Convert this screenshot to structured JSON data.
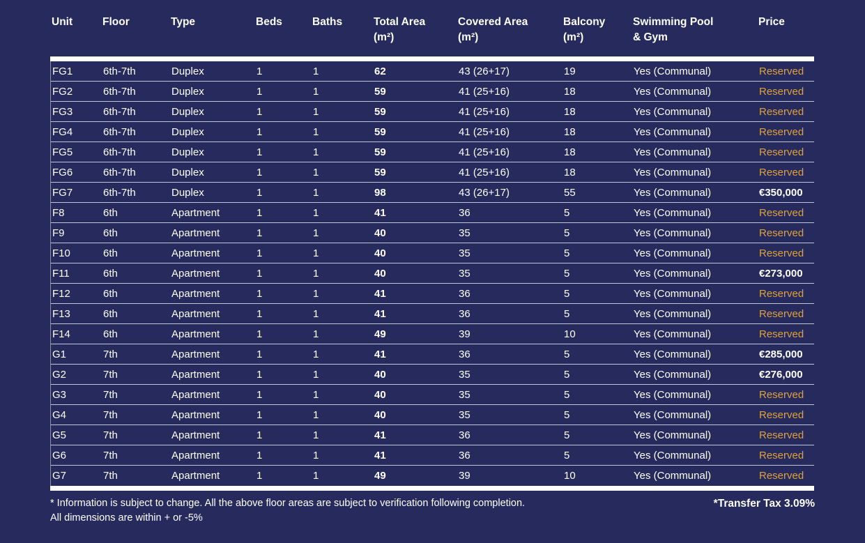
{
  "colors": {
    "background": "#262a5c",
    "reserved_text": "#dfa237",
    "body_text": "#ffffff",
    "divider_bar": "#ffffff",
    "row_separator": "#c3c7db"
  },
  "table": {
    "header": [
      "Unit",
      "Floor",
      "Type",
      "Beds",
      "Baths",
      "Total Area\n(m²)",
      "Covered Area\n(m²)",
      "Balcony\n(m²)",
      "Swimming Pool\n& Gym",
      "Price"
    ],
    "rows": [
      {
        "unit": "FG1",
        "floor": "6th-7th",
        "type": "Duplex",
        "beds": "1",
        "baths": "1",
        "total_area": "62",
        "covered_area": "43 (26+17)",
        "balcony": "19",
        "pool_gym": "Yes (Communal)",
        "price": "Reserved",
        "price_class": "reserved"
      },
      {
        "unit": "FG2",
        "floor": "6th-7th",
        "type": "Duplex",
        "beds": "1",
        "baths": "1",
        "total_area": "59",
        "covered_area": "41 (25+16)",
        "balcony": "18",
        "pool_gym": "Yes (Communal)",
        "price": "Reserved",
        "price_class": "reserved"
      },
      {
        "unit": "FG3",
        "floor": "6th-7th",
        "type": "Duplex",
        "beds": "1",
        "baths": "1",
        "total_area": "59",
        "covered_area": "41 (25+16)",
        "balcony": "18",
        "pool_gym": "Yes (Communal)",
        "price": "Reserved",
        "price_class": "reserved"
      },
      {
        "unit": "FG4",
        "floor": "6th-7th",
        "type": "Duplex",
        "beds": "1",
        "baths": "1",
        "total_area": "59",
        "covered_area": "41 (25+16)",
        "balcony": "18",
        "pool_gym": "Yes (Communal)",
        "price": "Reserved",
        "price_class": "reserved"
      },
      {
        "unit": "FG5",
        "floor": "6th-7th",
        "type": "Duplex",
        "beds": "1",
        "baths": "1",
        "total_area": "59",
        "covered_area": "41 (25+16)",
        "balcony": "18",
        "pool_gym": "Yes (Communal)",
        "price": "Reserved",
        "price_class": "reserved"
      },
      {
        "unit": "FG6",
        "floor": "6th-7th",
        "type": "Duplex",
        "beds": "1",
        "baths": "1",
        "total_area": "59",
        "covered_area": "41 (25+16)",
        "balcony": "18",
        "pool_gym": "Yes (Communal)",
        "price": "Reserved",
        "price_class": "reserved"
      },
      {
        "unit": "FG7",
        "floor": "6th-7th",
        "type": "Duplex",
        "beds": "1",
        "baths": "1",
        "total_area": "98",
        "covered_area": "43 (26+17)",
        "balcony": "55",
        "pool_gym": "Yes (Communal)",
        "price": "€350,000",
        "price_class": "amount"
      },
      {
        "unit": "F8",
        "floor": "6th",
        "type": "Apartment",
        "beds": "1",
        "baths": "1",
        "total_area": "41",
        "covered_area": "36",
        "balcony": "5",
        "pool_gym": "Yes (Communal)",
        "price": "Reserved",
        "price_class": "reserved"
      },
      {
        "unit": "F9",
        "floor": "6th",
        "type": "Apartment",
        "beds": "1",
        "baths": "1",
        "total_area": "40",
        "covered_area": "35",
        "balcony": "5",
        "pool_gym": "Yes (Communal)",
        "price": "Reserved",
        "price_class": "reserved"
      },
      {
        "unit": "F10",
        "floor": "6th",
        "type": "Apartment",
        "beds": "1",
        "baths": "1",
        "total_area": "40",
        "covered_area": "35",
        "balcony": "5",
        "pool_gym": "Yes (Communal)",
        "price": "Reserved",
        "price_class": "reserved"
      },
      {
        "unit": "F11",
        "floor": "6th",
        "type": "Apartment",
        "beds": "1",
        "baths": "1",
        "total_area": "40",
        "covered_area": "35",
        "balcony": "5",
        "pool_gym": "Yes (Communal)",
        "price": "€273,000",
        "price_class": "amount"
      },
      {
        "unit": "F12",
        "floor": "6th",
        "type": "Apartment",
        "beds": "1",
        "baths": "1",
        "total_area": "41",
        "covered_area": "36",
        "balcony": "5",
        "pool_gym": "Yes (Communal)",
        "price": "Reserved",
        "price_class": "reserved"
      },
      {
        "unit": "F13",
        "floor": "6th",
        "type": "Apartment",
        "beds": "1",
        "baths": "1",
        "total_area": "41",
        "covered_area": "36",
        "balcony": "5",
        "pool_gym": "Yes (Communal)",
        "price": "Reserved",
        "price_class": "reserved"
      },
      {
        "unit": "F14",
        "floor": "6th",
        "type": "Apartment",
        "beds": "1",
        "baths": "1",
        "total_area": "49",
        "covered_area": "39",
        "balcony": "10",
        "pool_gym": "Yes (Communal)",
        "price": "Reserved",
        "price_class": "reserved"
      },
      {
        "unit": "G1",
        "floor": "7th",
        "type": "Apartment",
        "beds": "1",
        "baths": "1",
        "total_area": "41",
        "covered_area": "36",
        "balcony": "5",
        "pool_gym": "Yes (Communal)",
        "price": "€285,000",
        "price_class": "amount"
      },
      {
        "unit": "G2",
        "floor": "7th",
        "type": "Apartment",
        "beds": "1",
        "baths": "1",
        "total_area": "40",
        "covered_area": "35",
        "balcony": "5",
        "pool_gym": "Yes (Communal)",
        "price": "€276,000",
        "price_class": "amount"
      },
      {
        "unit": "G3",
        "floor": "7th",
        "type": "Apartment",
        "beds": "1",
        "baths": "1",
        "total_area": "40",
        "covered_area": "35",
        "balcony": "5",
        "pool_gym": "Yes (Communal)",
        "price": "Reserved",
        "price_class": "reserved"
      },
      {
        "unit": "G4",
        "floor": "7th",
        "type": "Apartment",
        "beds": "1",
        "baths": "1",
        "total_area": "40",
        "covered_area": "35",
        "balcony": "5",
        "pool_gym": "Yes (Communal)",
        "price": "Reserved",
        "price_class": "reserved"
      },
      {
        "unit": "G5",
        "floor": "7th",
        "type": "Apartment",
        "beds": "1",
        "baths": "1",
        "total_area": "41",
        "covered_area": "36",
        "balcony": "5",
        "pool_gym": "Yes (Communal)",
        "price": "Reserved",
        "price_class": "reserved"
      },
      {
        "unit": "G6",
        "floor": "7th",
        "type": "Apartment",
        "beds": "1",
        "baths": "1",
        "total_area": "41",
        "covered_area": "36",
        "balcony": "5",
        "pool_gym": "Yes (Communal)",
        "price": "Reserved",
        "price_class": "reserved"
      },
      {
        "unit": "G7",
        "floor": "7th",
        "type": "Apartment",
        "beds": "1",
        "baths": "1",
        "total_area": "49",
        "covered_area": "39",
        "balcony": "10",
        "pool_gym": "Yes (Communal)",
        "price": "Reserved",
        "price_class": "reserved"
      }
    ]
  },
  "footer": {
    "note_line1": "* Information is subject to change. All the above floor areas are subject to verification following completion.",
    "note_line2": "All dimensions are within + or -5%",
    "transfer_tax": "*Transfer Tax 3.09%"
  }
}
